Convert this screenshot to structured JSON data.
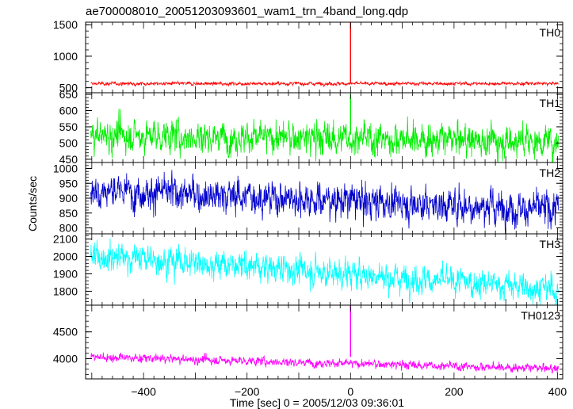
{
  "chart_data": {
    "type": "line",
    "title": "ae700008010_20051203093601_wam1_trn_4band_long.qdp",
    "xlabel": "Time [sec] 0 = 2005/12/03 09:36:01",
    "ylabel": "Counts/sec",
    "xlim": [
      -512,
      410
    ],
    "x_ticks": [
      -400,
      -200,
      0,
      200,
      400
    ],
    "x_tick_labels": [
      "−400",
      "−200",
      "0",
      "200",
      "400"
    ],
    "grid": false,
    "layout": "stacked-panels-shared-x",
    "series": [
      {
        "name": "TH0",
        "color": "#ff0000",
        "ylim": [
          420,
          1540
        ],
        "yticks": [
          500,
          1000,
          1500
        ],
        "baseline": 565,
        "baseline_end": 565,
        "noise": 15,
        "spike_at": 0,
        "spike_peak": 1540
      },
      {
        "name": "TH1",
        "color": "#00ee00",
        "ylim": [
          440,
          655
        ],
        "yticks": [
          450,
          500,
          550,
          600,
          650
        ],
        "baseline": 525,
        "baseline_end": 505,
        "noise": 28,
        "spike_at": 0,
        "spike_peak": 650
      },
      {
        "name": "TH2",
        "color": "#0000cc",
        "ylim": [
          780,
          1020
        ],
        "yticks": [
          800,
          850,
          900,
          950,
          1000
        ],
        "baseline": 930,
        "baseline_end": 860,
        "noise": 32,
        "spike_at": null,
        "spike_peak": null
      },
      {
        "name": "TH3",
        "color": "#00ffff",
        "ylim": [
          1720,
          2130
        ],
        "yticks": [
          1800,
          1900,
          2000,
          2100
        ],
        "baseline": 2010,
        "baseline_end": 1810,
        "noise": 45,
        "spike_at": null,
        "spike_peak": null
      },
      {
        "name": "TH0123",
        "color": "#ff00ff",
        "ylim": [
          3620,
          5000
        ],
        "yticks": [
          4000,
          4500
        ],
        "baseline": 4030,
        "baseline_end": 3810,
        "noise": 45,
        "spike_at": 0,
        "spike_peak": 5000
      }
    ]
  }
}
